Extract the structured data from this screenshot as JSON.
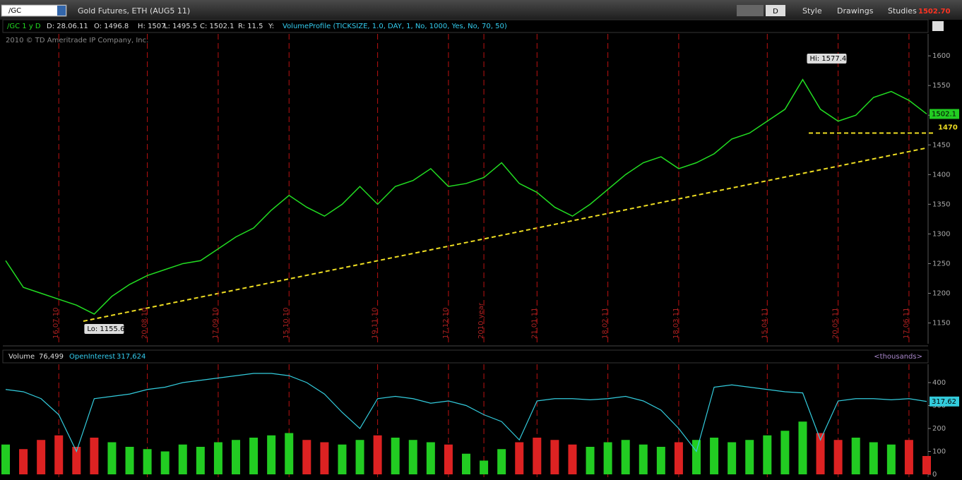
{
  "toolbar": {
    "symbol": "/GC",
    "description": "Gold Futures, ETH (AUG5 11)",
    "aggregation": "D",
    "style": "Style",
    "drawings": "Drawings",
    "studies": "Studies",
    "last": "1502.70"
  },
  "info_bar": {
    "chart": "/GC 1 y D",
    "date": "D: 28.06.11",
    "open": "O: 1496.8",
    "high": "H: 1507",
    "low": "L: 1495.5",
    "close": "C: 1502.1",
    "range": "R: 11.5",
    "y": "Y:",
    "study": "VolumeProfile (TICKSIZE, 1.0, DAY, 1, No, 1000, Yes, No, 70, 50)"
  },
  "copyright": "2010 © TD Ameritrade IP Company, Inc.",
  "chart_data": [
    {
      "type": "line",
      "categories": [
        null,
        null,
        null,
        "16.07.10",
        null,
        null,
        null,
        null,
        "20.08.10",
        null,
        null,
        null,
        "17.09.10",
        null,
        null,
        null,
        "15.10.10",
        null,
        null,
        null,
        null,
        "19.11.10",
        null,
        null,
        null,
        "17.12.10",
        null,
        "2010 year",
        null,
        null,
        "21.01.11",
        null,
        null,
        null,
        "18.02.11",
        null,
        null,
        null,
        "18.03.11",
        null,
        null,
        null,
        null,
        "15.04.11",
        null,
        null,
        null,
        "20.05.11",
        null,
        null,
        null,
        "17.06.11",
        null
      ],
      "series": [
        {
          "name": "/GC",
          "color": "#22dd22",
          "values": [
            1255,
            1210,
            1200,
            1190,
            1180,
            1165,
            1195,
            1215,
            1230,
            1240,
            1250,
            1255,
            1275,
            1295,
            1310,
            1340,
            1365,
            1345,
            1330,
            1350,
            1380,
            1350,
            1380,
            1390,
            1410,
            1380,
            1385,
            1395,
            1420,
            1385,
            1370,
            1345,
            1330,
            1350,
            1375,
            1400,
            1420,
            1430,
            1410,
            1420,
            1435,
            1460,
            1470,
            1490,
            1510,
            1560,
            1510,
            1490,
            1500,
            1530,
            1540,
            1525,
            1502.1
          ]
        }
      ],
      "ylim": [
        1115,
        1637
      ],
      "yticks": [
        1150,
        1200,
        1250,
        1300,
        1350,
        1400,
        1450,
        1500,
        1550,
        1600
      ],
      "last_label": "1502.1",
      "hi_label": "Hi: 1577.4",
      "lo_label": "Lo: 1155.6",
      "level": 1470
    },
    {
      "type": "bar",
      "label": "<thousands>",
      "series": [
        {
          "name": "Volume",
          "readout": "76,499",
          "up_color": "#22cc22",
          "down_color": "#dd2222",
          "values": [
            130,
            110,
            150,
            170,
            120,
            160,
            140,
            120,
            110,
            100,
            130,
            120,
            140,
            150,
            160,
            170,
            180,
            150,
            140,
            130,
            150,
            170,
            160,
            150,
            140,
            130,
            90,
            60,
            110,
            140,
            160,
            150,
            130,
            120,
            140,
            150,
            130,
            120,
            140,
            150,
            160,
            140,
            150,
            170,
            190,
            230,
            180,
            150,
            160,
            140,
            130,
            150,
            80
          ]
        },
        {
          "name": "OpenInterest",
          "readout": "317,624",
          "color": "#33ccdd",
          "last_label": "317.62",
          "values": [
            370,
            360,
            330,
            260,
            100,
            330,
            340,
            350,
            370,
            380,
            400,
            410,
            420,
            430,
            440,
            440,
            430,
            400,
            350,
            270,
            200,
            330,
            340,
            330,
            310,
            320,
            300,
            260,
            230,
            150,
            320,
            330,
            330,
            325,
            330,
            340,
            320,
            280,
            200,
            100,
            380,
            390,
            380,
            370,
            360,
            355,
            150,
            320,
            330,
            330,
            325,
            330,
            317.62
          ]
        }
      ],
      "ylim": [
        0,
        480
      ],
      "yticks": [
        0,
        100,
        200,
        300,
        400
      ]
    }
  ]
}
